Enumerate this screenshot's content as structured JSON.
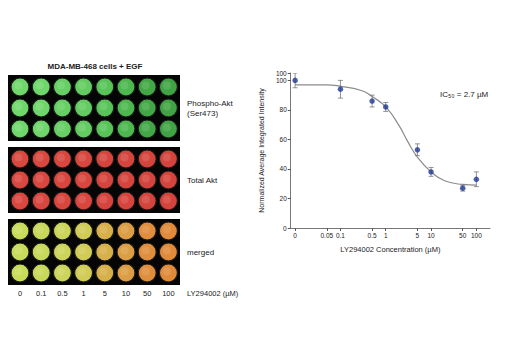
{
  "chart_data": {
    "type": "scatter",
    "x_label": "LY294002 Concentration (µM)",
    "y_label": "Normalized Average Integrated Intensity",
    "annotations": [
      "IC₅₀ = 2.7 µM"
    ],
    "log": "x",
    "xlim": [
      0.008,
      200
    ],
    "xticks": [
      {
        "value": 0.01,
        "label": "0"
      },
      0.05,
      0.1,
      0.5,
      1,
      5,
      10,
      50,
      100
    ],
    "ylim": [
      0,
      105
    ],
    "yticks": [
      0,
      20,
      40,
      60,
      80,
      100
    ],
    "grid": false,
    "series": [
      {
        "type": "line",
        "color": "#8c8c8c",
        "line_style": "solid",
        "x": [
          0.01,
          0.05,
          0.1,
          0.3,
          0.5,
          1,
          2,
          3,
          5,
          10,
          20,
          50,
          100
        ],
        "values": [
          97,
          97,
          96,
          93,
          89,
          82,
          69,
          59,
          48,
          38,
          32,
          29.5,
          29
        ]
      },
      {
        "type": "scatter",
        "color": "#1f3a93",
        "marker": "circle",
        "x": [
          0.01,
          0.1,
          0.5,
          1,
          5,
          10,
          50,
          100
        ],
        "values": [
          100,
          94,
          86,
          82,
          53,
          38,
          27,
          33
        ],
        "errors": [
          5,
          6,
          4,
          3,
          4,
          3,
          2,
          5
        ]
      }
    ]
  },
  "plate": {
    "title": "MDA-MB-468 cells + EGF",
    "concentrations": [
      "0",
      "0.1",
      "0.5",
      "1",
      "5",
      "10",
      "50",
      "100"
    ],
    "x_label": "LY294002 (µM)",
    "panels": [
      {
        "label": [
          "Phospho-Akt",
          "(Ser473)"
        ],
        "colors": [
          "#6fd86a",
          "#6ed66a",
          "#66d064",
          "#62cc60",
          "#58c458",
          "#4cb84e",
          "#42a846",
          "#40a444"
        ]
      },
      {
        "label": [
          "Total Akt"
        ],
        "colors": [
          "#d9473f",
          "#d9473f",
          "#d8463e",
          "#d8463e",
          "#d6453d",
          "#d6453d",
          "#d4443c",
          "#d4443c"
        ]
      },
      {
        "label": [
          "merged"
        ],
        "colors": [
          "#c8dc5a",
          "#c8d85a",
          "#ccd45a",
          "#d0cc56",
          "#d8b04a",
          "#dc9e44",
          "#e08e3c",
          "#e08a3a"
        ]
      }
    ]
  }
}
